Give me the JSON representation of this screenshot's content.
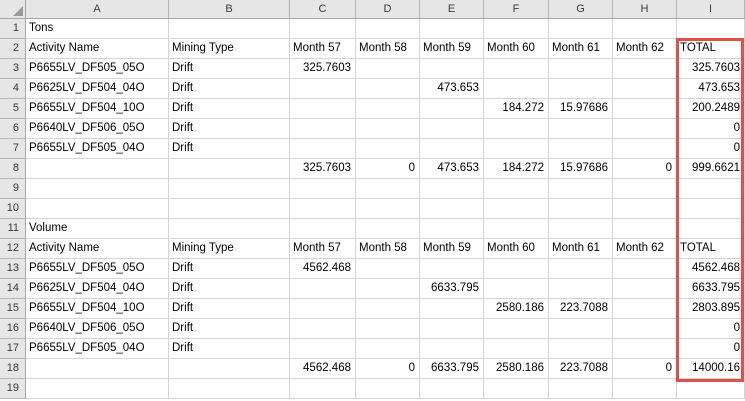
{
  "grid": {
    "column_headers": [
      "A",
      "B",
      "C",
      "D",
      "E",
      "F",
      "G",
      "H",
      "I"
    ],
    "rows": [
      {
        "n": "1",
        "cells": [
          "Tons",
          "",
          "",
          "",
          "",
          "",
          "",
          "",
          ""
        ]
      },
      {
        "n": "2",
        "cells": [
          "Activity Name",
          "Mining Type",
          "Month 57",
          "Month 58",
          "Month 59",
          "Month 60",
          "Month 61",
          "Month 62",
          "TOTAL"
        ]
      },
      {
        "n": "3",
        "cells": [
          "P6655LV_DF505_05O",
          "Drift",
          "325.7603",
          "",
          "",
          "",
          "",
          "",
          "325.7603"
        ]
      },
      {
        "n": "4",
        "cells": [
          "P6625LV_DF504_04O",
          "Drift",
          "",
          "",
          "473.653",
          "",
          "",
          "",
          "473.653"
        ]
      },
      {
        "n": "5",
        "cells": [
          "P6655LV_DF504_10O",
          "Drift",
          "",
          "",
          "",
          "184.272",
          "15.97686",
          "",
          "200.2489"
        ]
      },
      {
        "n": "6",
        "cells": [
          "P6640LV_DF506_05O",
          "Drift",
          "",
          "",
          "",
          "",
          "",
          "",
          "0"
        ]
      },
      {
        "n": "7",
        "cells": [
          "P6655LV_DF505_04O",
          "Drift",
          "",
          "",
          "",
          "",
          "",
          "",
          "0"
        ]
      },
      {
        "n": "8",
        "cells": [
          "",
          "",
          "325.7603",
          "0",
          "473.653",
          "184.272",
          "15.97686",
          "0",
          "999.6621"
        ]
      },
      {
        "n": "9",
        "cells": [
          "",
          "",
          "",
          "",
          "",
          "",
          "",
          "",
          ""
        ]
      },
      {
        "n": "10",
        "cells": [
          "",
          "",
          "",
          "",
          "",
          "",
          "",
          "",
          ""
        ]
      },
      {
        "n": "11",
        "cells": [
          "Volume",
          "",
          "",
          "",
          "",
          "",
          "",
          "",
          ""
        ]
      },
      {
        "n": "12",
        "cells": [
          "Activity Name",
          "Mining Type",
          "Month 57",
          "Month 58",
          "Month 59",
          "Month 60",
          "Month 61",
          "Month 62",
          "TOTAL"
        ]
      },
      {
        "n": "13",
        "cells": [
          "P6655LV_DF505_05O",
          "Drift",
          "4562.468",
          "",
          "",
          "",
          "",
          "",
          "4562.468"
        ]
      },
      {
        "n": "14",
        "cells": [
          "P6625LV_DF504_04O",
          "Drift",
          "",
          "",
          "6633.795",
          "",
          "",
          "",
          "6633.795"
        ]
      },
      {
        "n": "15",
        "cells": [
          "P6655LV_DF504_10O",
          "Drift",
          "",
          "",
          "",
          "2580.186",
          "223.7088",
          "",
          "2803.895"
        ]
      },
      {
        "n": "16",
        "cells": [
          "P6640LV_DF506_05O",
          "Drift",
          "",
          "",
          "",
          "",
          "",
          "",
          "0"
        ]
      },
      {
        "n": "17",
        "cells": [
          "P6655LV_DF505_04O",
          "Drift",
          "",
          "",
          "",
          "",
          "",
          "",
          "0"
        ]
      },
      {
        "n": "18",
        "cells": [
          "",
          "",
          "4562.468",
          "0",
          "6633.795",
          "2580.186",
          "223.7088",
          "0",
          "14000.16"
        ]
      },
      {
        "n": "19",
        "cells": [
          "",
          "",
          "",
          "",
          "",
          "",
          "",
          "",
          ""
        ]
      }
    ]
  },
  "highlight": {
    "border_color": "#e0504a",
    "column": "I",
    "start_row": "2",
    "end_row": "18"
  }
}
